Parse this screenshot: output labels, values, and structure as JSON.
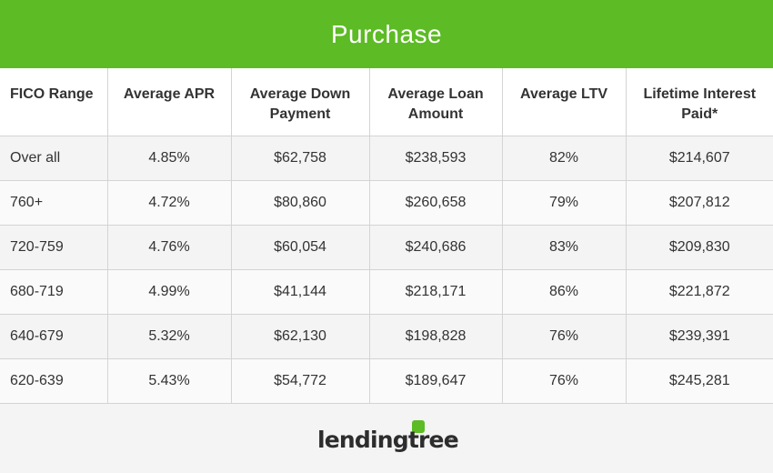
{
  "title": "Purchase",
  "columns": [
    "FICO Range",
    "Average APR",
    "Average Down Payment",
    "Average Loan Amount",
    "Average LTV",
    "Lifetime Interest Paid*"
  ],
  "rows": [
    [
      "Over all",
      "4.85%",
      "$62,758",
      "$238,593",
      "82%",
      "$214,607"
    ],
    [
      "760+",
      "4.72%",
      "$80,860",
      "$260,658",
      "79%",
      "$207,812"
    ],
    [
      "720-759",
      "4.76%",
      "$60,054",
      "$240,686",
      "83%",
      "$209,830"
    ],
    [
      "680-719",
      "4.99%",
      "$41,144",
      "$218,171",
      "86%",
      "$221,872"
    ],
    [
      "640-679",
      "5.32%",
      "$62,130",
      "$198,828",
      "76%",
      "$239,391"
    ],
    [
      "620-639",
      "5.43%",
      "$54,772",
      "$189,647",
      "76%",
      "$245,281"
    ]
  ],
  "logo": {
    "text": "lendingtree",
    "registered": "®",
    "brand_color": "#5dbb25"
  },
  "colors": {
    "banner": "#5dbb25",
    "banner_text": "#ffffff",
    "header_bg": "#ffffff",
    "row_bg": "#f4f4f4",
    "grid_line": "#d4d4d4"
  }
}
